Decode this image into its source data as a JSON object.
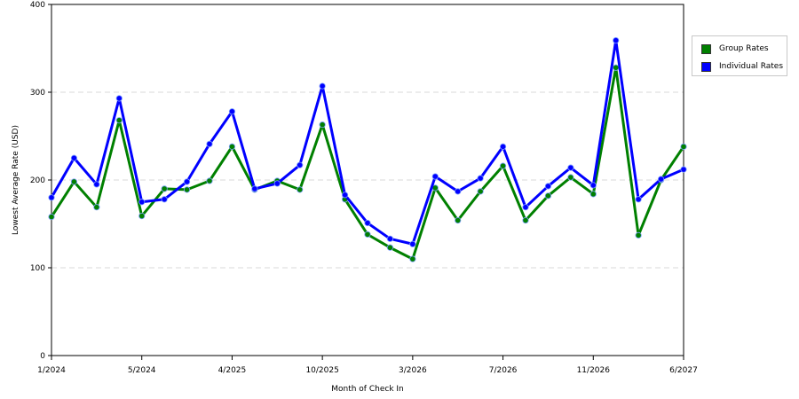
{
  "chart_data": {
    "type": "line",
    "xlabel": "Month of Check In",
    "ylabel": "Lowest Average Rate (USD)",
    "ylim": [
      0,
      400
    ],
    "yticks": [
      0,
      100,
      200,
      300,
      400
    ],
    "grid": "horizontal dashed",
    "legend_position": "right",
    "x_tick_labels": [
      {
        "index": 0,
        "label": "1/2024"
      },
      {
        "index": 4,
        "label": "5/2024"
      },
      {
        "index": 8,
        "label": "4/2025"
      },
      {
        "index": 12,
        "label": "10/2025"
      },
      {
        "index": 16,
        "label": "3/2026"
      },
      {
        "index": 20,
        "label": "7/2026"
      },
      {
        "index": 24,
        "label": "11/2026"
      },
      {
        "index": 28,
        "label": "6/2027"
      }
    ],
    "point_count": 29,
    "series": [
      {
        "name": "Group Rates",
        "color": "#008000",
        "values": [
          158,
          198,
          169,
          268,
          159,
          190,
          189,
          199,
          238,
          189,
          199,
          189,
          263,
          178,
          138,
          123,
          110,
          191,
          154,
          187,
          216,
          154,
          182,
          203,
          184,
          328,
          137,
          200,
          238
        ]
      },
      {
        "name": "Individual Rates",
        "color": "#0000ff",
        "values": [
          180,
          225,
          195,
          293,
          175,
          178,
          198,
          241,
          278,
          190,
          196,
          217,
          307,
          183,
          151,
          133,
          127,
          204,
          187,
          202,
          238,
          169,
          193,
          214,
          194,
          359,
          178,
          201,
          212
        ]
      }
    ]
  }
}
